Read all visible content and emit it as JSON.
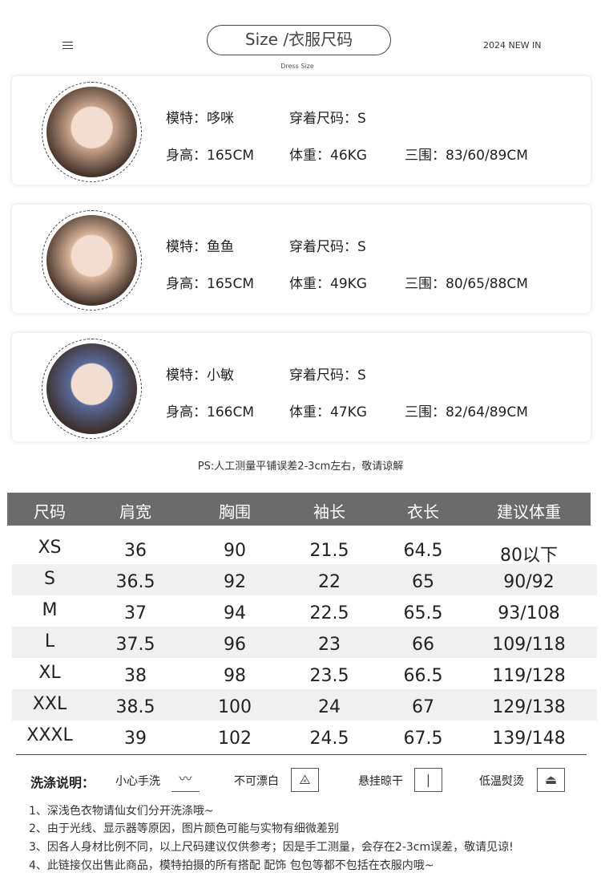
{
  "header": {
    "menu_icon": "menu-icon",
    "title": "Size  /衣服尺码",
    "subtitle": "Dress Size",
    "tag": "2024 NEW IN"
  },
  "models": [
    {
      "name_label": "模特：",
      "name": "哆咪",
      "size_label": "穿着尺码：",
      "size": "S",
      "height_label": "身高：",
      "height": "165CM",
      "weight_label": "体重：",
      "weight": "46KG",
      "bust_label": "三围：",
      "measure": "83/60/89CM",
      "photo_color": "#c9a48c"
    },
    {
      "name_label": "模特：",
      "name": "鱼鱼",
      "size_label": "穿着尺码：",
      "size": "S",
      "height_label": "身高：",
      "height": "165CM",
      "weight_label": "体重：",
      "weight": "49KG",
      "bust_label": "三围：",
      "measure": "80/65/88CM",
      "photo_color": "#d9b49a"
    },
    {
      "name_label": "模特：",
      "name": "小敏",
      "size_label": "穿着尺码：",
      "size": "S",
      "height_label": "身高：",
      "height": "166CM",
      "weight_label": "体重：",
      "weight": "47KG",
      "bust_label": "三围：",
      "measure": "82/64/89CM",
      "photo_color": "#5a6a9a"
    }
  ],
  "ps": "PS:人工测量平铺误差2-3cm左右，敬请谅解",
  "table": {
    "headers": [
      "尺码",
      "肩宽",
      "胸围",
      "袖长",
      "衣长",
      "建议体重"
    ],
    "rows": [
      [
        "XS",
        "36",
        "90",
        "21.5",
        "64.5",
        "80以下"
      ],
      [
        "S",
        "36.5",
        "92",
        "22",
        "65",
        "90/92"
      ],
      [
        "M",
        "37",
        "94",
        "22.5",
        "65.5",
        "93/108"
      ],
      [
        "L",
        "37.5",
        "96",
        "23",
        "66",
        "109/118"
      ],
      [
        "XL",
        "38",
        "98",
        "23.5",
        "66.5",
        "119/128"
      ],
      [
        "XXL",
        "38.5",
        "100",
        "24",
        "67",
        "129/138"
      ],
      [
        "XXXL",
        "39",
        "102",
        "24.5",
        "67.5",
        "139/148"
      ]
    ],
    "header_color": "#6b6b6b",
    "stripe_color": "#f0f0f0"
  },
  "care": {
    "title": "洗涤说明：",
    "items": [
      {
        "label": "小心手洗",
        "icon": "hand-wash-icon"
      },
      {
        "label": "不可漂白",
        "icon": "no-bleach-icon"
      },
      {
        "label": "悬挂晾干",
        "icon": "hang-dry-icon"
      },
      {
        "label": "低温熨烫",
        "icon": "low-iron-icon"
      }
    ]
  },
  "notes": [
    "1、深浅色衣物请仙女们分开洗涤哦~",
    "2、由于光线、显示器等原因，图片颜色可能与实物有细微差别",
    "3、因各人身材比例不同，以上尺码建议仅供参考；因是手工测量，会存在2-3cm误差，敬请见谅!",
    "4、此链接仅出售此商品，模特拍摄的所有搭配 配饰 包包等都不包括在衣服内哦~"
  ]
}
